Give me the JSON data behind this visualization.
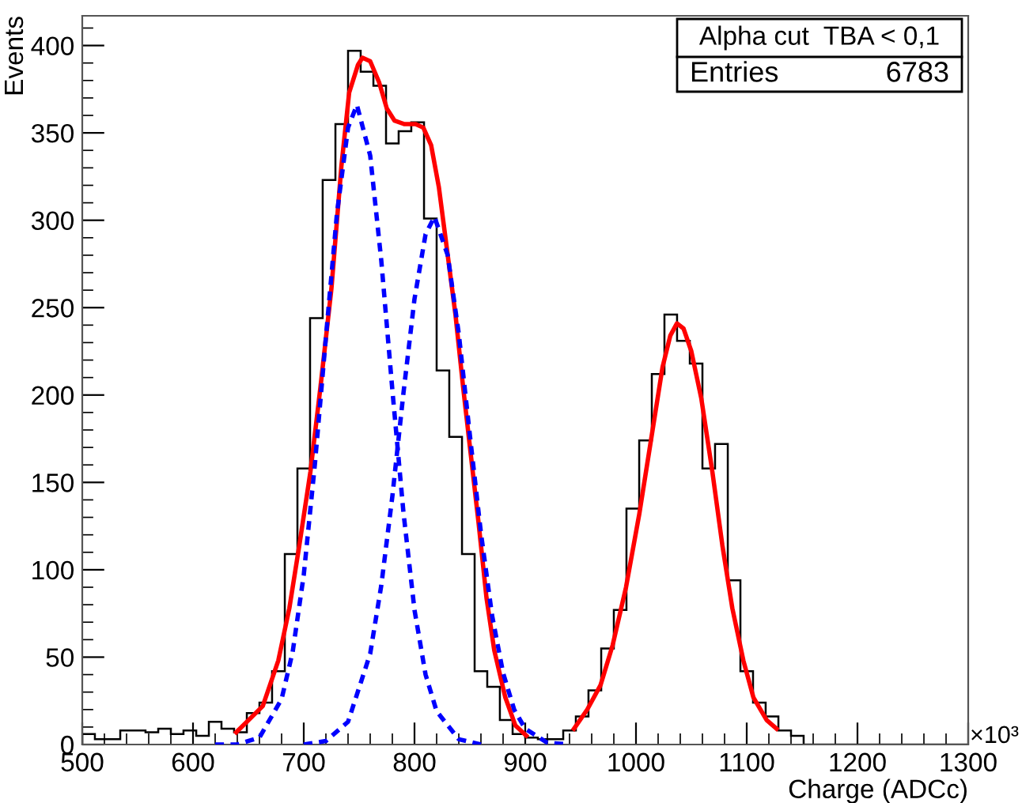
{
  "chart_data": {
    "type": "histogram",
    "xlabel": "Charge (ADCc)",
    "ylabel": "Events",
    "annotations": [
      "Alpha cut  TBA < 0,1",
      "Entries",
      "6783",
      "×10³"
    ],
    "xlim": [
      500,
      1300
    ],
    "xticks": [
      500,
      600,
      700,
      800,
      900,
      1000,
      1100,
      1200,
      1300
    ],
    "ylim": [
      0,
      417
    ],
    "yticks": [
      0,
      50,
      100,
      150,
      200,
      250,
      300,
      350,
      400
    ],
    "grid": false,
    "color": "#000000",
    "bins": [
      500,
      511.4,
      522.9,
      534.3,
      545.7,
      557.1,
      568.6,
      580,
      591.4,
      602.9,
      614.3,
      625.7,
      637.1,
      648.6,
      660,
      671.4,
      682.9,
      694.3,
      705.7,
      717.1,
      728.6,
      740,
      751.4,
      762.9,
      774.3,
      785.7,
      797.1,
      808.6,
      820,
      831.4,
      842.9,
      854.3,
      865.7,
      877.1,
      888.6,
      900,
      911.4,
      922.9,
      934.3,
      945.7,
      957.1,
      968.6,
      980,
      991.4,
      1002.9,
      1014.3,
      1025.7,
      1037.1,
      1048.6,
      1060,
      1071.4,
      1082.9,
      1094.3,
      1105.7,
      1117.1,
      1128.6,
      1140,
      1151.4,
      1162.9,
      1174.3,
      1185.7,
      1197.1,
      1208.6,
      1220,
      1231.4,
      1242.9,
      1254.3,
      1265.7,
      1277.1,
      1288.6,
      1300
    ],
    "values": [
      6,
      3,
      3,
      8,
      8,
      7,
      9,
      6,
      8,
      5,
      13,
      9,
      7,
      18,
      24,
      42,
      109,
      158,
      244,
      323,
      355,
      397,
      385,
      377,
      344,
      351,
      356,
      301,
      214,
      176,
      109,
      42,
      33,
      14,
      6,
      4,
      3,
      3,
      8,
      16,
      31,
      55,
      77,
      135,
      174,
      212,
      246,
      231,
      218,
      158,
      172,
      94,
      42,
      24,
      16,
      8,
      5,
      0,
      0,
      0,
      0,
      0,
      0,
      0,
      0,
      0,
      0,
      0,
      0,
      0
    ],
    "series": [
      {
        "type": "line",
        "color": "#0000ff",
        "line_style": "dotted",
        "x": [
          620,
          640,
          660,
          680,
          690,
          700,
          710,
          720,
          730,
          740,
          748,
          760,
          770,
          780,
          790,
          800,
          810,
          820,
          840,
          860
        ],
        "values": [
          0,
          0,
          4,
          26,
          53,
          97,
          160,
          233,
          304,
          353,
          366,
          337,
          277,
          203,
          133,
          77,
          40,
          19,
          3,
          0
        ]
      },
      {
        "type": "line",
        "color": "#0000ff",
        "line_style": "dotted",
        "x": [
          700,
          720,
          740,
          760,
          770,
          780,
          790,
          800,
          810,
          818,
          830,
          840,
          850,
          860,
          870,
          880,
          890,
          900,
          920,
          940
        ],
        "values": [
          0,
          2,
          13,
          52,
          91,
          142,
          201,
          255,
          292,
          302,
          280,
          235,
          177,
          121,
          74,
          41,
          20,
          9,
          1,
          0
        ]
      },
      {
        "type": "line",
        "color": "#ff0000",
        "line_style": "solid",
        "x": [
          639,
          663,
          677,
          687,
          696,
          706,
          715,
          725,
          734,
          741,
          749,
          753,
          760,
          768,
          775,
          782,
          791,
          801,
          808,
          815,
          822,
          830,
          837,
          844,
          851,
          858,
          865,
          872,
          882,
          891,
          901
        ],
        "values": [
          7,
          22,
          48,
          78,
          114,
          156,
          204,
          261,
          331,
          373,
          389,
          393,
          391,
          379,
          364,
          357,
          355,
          355,
          353,
          343,
          319,
          280,
          246,
          204,
          165,
          126,
          84,
          54,
          27,
          11,
          5
        ]
      },
      {
        "type": "line",
        "color": "#ff0000",
        "line_style": "solid",
        "x": [
          944,
          956,
          968,
          979,
          991,
          1003,
          1015,
          1024,
          1031,
          1037,
          1043,
          1050,
          1059,
          1069,
          1078,
          1087,
          1097,
          1106,
          1118,
          1127
        ],
        "values": [
          9,
          20,
          34,
          57,
          90,
          132,
          180,
          216,
          234,
          241,
          238,
          225,
          198,
          156,
          114,
          78,
          48,
          27,
          14,
          9
        ]
      }
    ]
  }
}
